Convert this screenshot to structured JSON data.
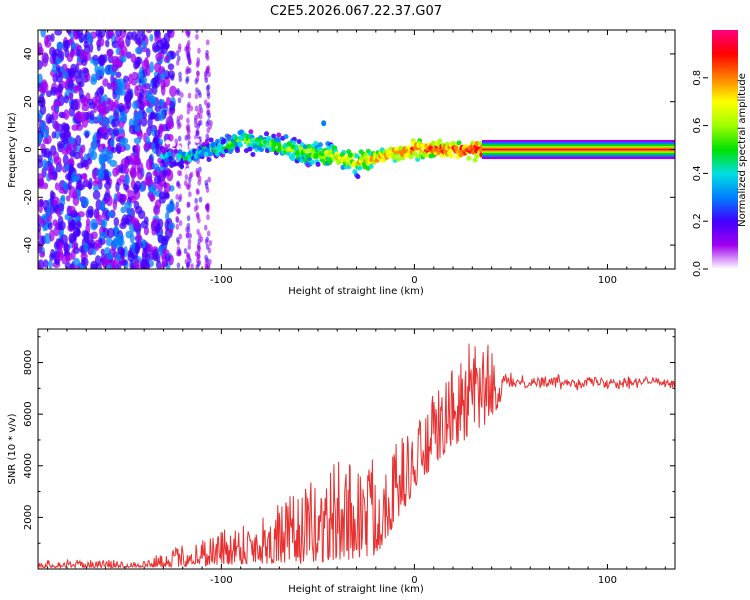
{
  "title": "C2E5.2026.067.22.37.G07",
  "chart_data": [
    {
      "type": "heatmap",
      "name": "spectrogram",
      "xlabel": "Height of straight line (km)",
      "ylabel": "Frequency (Hz)",
      "xlim": [
        -195,
        135
      ],
      "ylim": [
        -50,
        50
      ],
      "xticks": [
        -100,
        0,
        100
      ],
      "yticks": [
        -40,
        -20,
        0,
        20,
        40
      ],
      "grid": false,
      "ridge_track": [
        {
          "x": -131,
          "y": -3
        },
        {
          "x": -120,
          "y": -3
        },
        {
          "x": -110,
          "y": -1
        },
        {
          "x": -100,
          "y": 1
        },
        {
          "x": -90,
          "y": 4
        },
        {
          "x": -80,
          "y": 3
        },
        {
          "x": -70,
          "y": 1
        },
        {
          "x": -60,
          "y": -1
        },
        {
          "x": -50,
          "y": -2
        },
        {
          "x": -40,
          "y": -3
        },
        {
          "x": -30,
          "y": -5
        },
        {
          "x": -20,
          "y": -4
        },
        {
          "x": -10,
          "y": -1
        },
        {
          "x": 0,
          "y": 0
        },
        {
          "x": 10,
          "y": 0
        },
        {
          "x": 20,
          "y": 0
        },
        {
          "x": 30,
          "y": 0
        },
        {
          "x": 35,
          "y": 0
        },
        {
          "x": 135,
          "y": 0
        }
      ],
      "noise_region": [
        -195,
        -125
      ],
      "colorbar": {
        "label": "Normalized spectral amplitude",
        "range": [
          0,
          1
        ],
        "ticks": [
          "0.0",
          "0.2",
          "0.4",
          "0.6",
          "0.8"
        ],
        "colors": [
          "#ffffff",
          "#a000f0",
          "#4000ff",
          "#0080ff",
          "#00e0e0",
          "#00e000",
          "#a0ff00",
          "#ffff00",
          "#ff8000",
          "#ff0000",
          "#ff0080"
        ]
      }
    },
    {
      "type": "line",
      "name": "snr",
      "xlabel": "Height of straight line (km)",
      "ylabel": "SNR (10 * v/v)",
      "xlim": [
        -195,
        135
      ],
      "ylim": [
        0,
        9300
      ],
      "xticks": [
        -100,
        0,
        100
      ],
      "yticks": [
        2000,
        4000,
        6000,
        8000
      ],
      "series_color": "#e83030",
      "envelope": [
        {
          "x": -195,
          "lo": 50,
          "hi": 350
        },
        {
          "x": -140,
          "lo": 60,
          "hi": 350
        },
        {
          "x": -125,
          "lo": 80,
          "hi": 800
        },
        {
          "x": -100,
          "lo": 150,
          "hi": 1600
        },
        {
          "x": -80,
          "lo": 200,
          "hi": 2200
        },
        {
          "x": -60,
          "lo": 200,
          "hi": 3000
        },
        {
          "x": -40,
          "lo": 300,
          "hi": 4300
        },
        {
          "x": -20,
          "lo": 500,
          "hi": 4500
        },
        {
          "x": 0,
          "lo": 3000,
          "hi": 5500
        },
        {
          "x": 10,
          "lo": 4000,
          "hi": 6800
        },
        {
          "x": 20,
          "lo": 4800,
          "hi": 7800
        },
        {
          "x": 28,
          "lo": 5000,
          "hi": 8800
        },
        {
          "x": 35,
          "lo": 5400,
          "hi": 9100
        },
        {
          "x": 42,
          "lo": 6100,
          "hi": 8200
        },
        {
          "x": 48,
          "lo": 6900,
          "hi": 7600
        },
        {
          "x": 135,
          "lo": 6900,
          "hi": 7600
        }
      ]
    }
  ]
}
